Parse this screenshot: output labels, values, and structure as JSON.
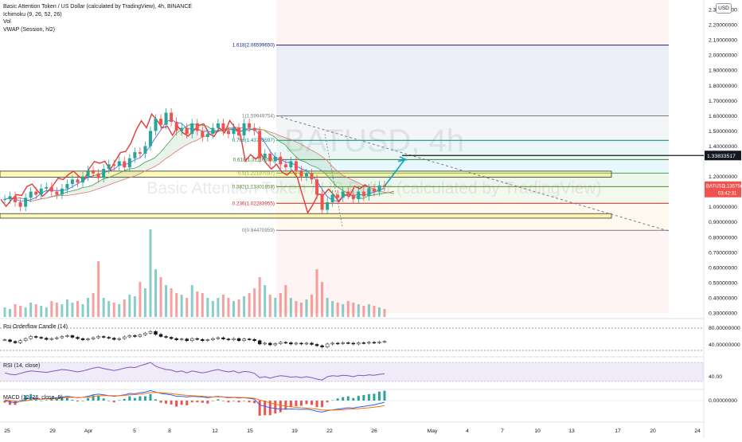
{
  "header": {
    "symbol_line": "Basic Attention Token / US Dollar (calculated by TradingView), 4h, BINANCE",
    "indicators": [
      "Ichimoku (9, 26, 52, 26)",
      "Vol",
      "VWAP (Session, hl2)"
    ],
    "currency_badge": "USD"
  },
  "watermark": {
    "ticker": "BATUSD, 4h",
    "name": "Basic Attention Token / US Dollar (calculated by TradingView)"
  },
  "price_axis": {
    "ticks": [
      "2.30000000",
      "2.20000000",
      "2.10000000",
      "2.00000000",
      "1.90000000",
      "1.80000000",
      "1.70000000",
      "1.60000000",
      "1.50000000",
      "1.40000000",
      "1.20000000",
      "1.10000000",
      "1.00000000",
      "0.90000000",
      "0.80000000",
      "0.70000000",
      "0.60000000",
      "0.50000000",
      "0.40000000",
      "0.30000000"
    ],
    "marker_level": "1.33833517",
    "last_symbol": "BATUSD",
    "last_price": "1.13575610",
    "countdown": "03:42:31"
  },
  "fibonacci": {
    "levels": [
      {
        "label": "1.618(2.06599650)",
        "price": 2.066,
        "color": "#1a237e"
      },
      {
        "label": "1(1.59949754)",
        "price": 1.5995,
        "color": "#787b86"
      },
      {
        "label": "0.786(1.43799597)",
        "price": 1.438,
        "color": "#00897b"
      },
      {
        "label": "0.618(1.31116855)",
        "price": 1.311,
        "color": "#2e7d32"
      },
      {
        "label": "0.5(1.22197037)",
        "price": 1.222,
        "color": "#43a047"
      },
      {
        "label": "0.382(1.13301859)",
        "price": 1.133,
        "color": "#558b2f"
      },
      {
        "label": "0.236(1.02283955)",
        "price": 1.0228,
        "color": "#c62828"
      },
      {
        "label": "0(0.84470959)",
        "price": 0.8447,
        "color": "#787b86"
      }
    ]
  },
  "time_axis": {
    "ticks": [
      "25",
      "29",
      "Apr",
      "5",
      "8",
      "12",
      "15",
      "19",
      "22",
      "26",
      "May",
      "4",
      "7",
      "10",
      "13",
      "17",
      "20",
      "24"
    ]
  },
  "panes": {
    "rsi_candle_label": "Rsi Orderflow Candle (14)",
    "rsi_candle_axis": [
      "80.00000000",
      "40.00000000"
    ],
    "rsi_label": "RSI (14, close)",
    "rsi_axis": [
      "40.00"
    ],
    "macd_label": "MACD (12, 26, close, 9)",
    "macd_axis": [
      "0.00000000"
    ]
  },
  "chart_data": {
    "type": "line",
    "title": "Basic Attention Token / US Dollar (calculated by TradingView), 4h, BINANCE",
    "xlabel": "",
    "ylabel": "",
    "ylim": [
      0.25,
      2.35
    ],
    "log_scale": false,
    "grid": false,
    "series": [
      {
        "name": "",
        "values": [
          1.05,
          1.07,
          1.03,
          1.0,
          1.06,
          1.1,
          1.08,
          1.12,
          1.13,
          1.1,
          1.08,
          1.12,
          1.15,
          1.18,
          1.16,
          1.2,
          1.24,
          1.22,
          1.19,
          1.25,
          1.28,
          1.27,
          1.3,
          1.26,
          1.32,
          1.36,
          1.35,
          1.4,
          1.5,
          1.58,
          1.54,
          1.62,
          1.56,
          1.5,
          1.52,
          1.48,
          1.55,
          1.5,
          1.46,
          1.48,
          1.52,
          1.55,
          1.5,
          1.48,
          1.52,
          1.47,
          1.55,
          1.52,
          1.5,
          1.32,
          1.35,
          1.3,
          1.33,
          1.28,
          1.26,
          1.3,
          1.24,
          1.2,
          1.22,
          1.18,
          1.08,
          0.98,
          1.03,
          1.08,
          1.06,
          1.1,
          1.08,
          1.05,
          1.1,
          1.07,
          1.12,
          1.1,
          1.14,
          1.136
        ]
      }
    ],
    "volume": [
      0.06,
      0.05,
      0.08,
      0.07,
      0.06,
      0.09,
      0.08,
      0.07,
      0.06,
      0.1,
      0.09,
      0.08,
      0.11,
      0.09,
      0.1,
      0.08,
      0.12,
      0.15,
      0.35,
      0.12,
      0.1,
      0.09,
      0.08,
      0.11,
      0.14,
      0.13,
      0.22,
      0.18,
      0.55,
      0.3,
      0.25,
      0.2,
      0.18,
      0.15,
      0.14,
      0.12,
      0.2,
      0.16,
      0.15,
      0.12,
      0.1,
      0.12,
      0.14,
      0.12,
      0.1,
      0.11,
      0.13,
      0.15,
      0.18,
      0.25,
      0.2,
      0.14,
      0.12,
      0.15,
      0.2,
      0.12,
      0.1,
      0.09,
      0.11,
      0.14,
      0.3,
      0.22,
      0.12,
      0.1,
      0.09,
      0.08,
      0.1,
      0.09,
      0.08,
      0.07,
      0.08,
      0.07,
      0.06,
      0.05
    ],
    "rsi_orderflow": [
      52,
      48,
      45,
      50,
      55,
      60,
      58,
      56,
      53,
      55,
      57,
      60,
      62,
      58,
      55,
      52,
      54,
      57,
      60,
      58,
      56,
      53,
      55,
      59,
      62,
      60,
      64,
      68,
      72,
      65,
      60,
      58,
      55,
      52,
      54,
      50,
      55,
      53,
      50,
      52,
      55,
      57,
      54,
      52,
      55,
      50,
      54,
      53,
      50,
      42,
      44,
      40,
      43,
      46,
      45,
      42,
      44,
      42,
      44,
      41,
      38,
      35,
      42,
      44,
      43,
      45,
      44,
      42,
      45,
      44,
      46,
      45,
      47,
      48
    ],
    "rsi": [
      48,
      45,
      44,
      47,
      50,
      52,
      51,
      50,
      49,
      51,
      53,
      55,
      54,
      52,
      50,
      52,
      55,
      58,
      60,
      57,
      55,
      53,
      55,
      58,
      60,
      59,
      63,
      66,
      70,
      62,
      58,
      55,
      54,
      50,
      52,
      48,
      52,
      50,
      48,
      50,
      53,
      55,
      52,
      50,
      52,
      48,
      51,
      50,
      47,
      38,
      40,
      37,
      40,
      42,
      41,
      39,
      40,
      38,
      40,
      38,
      35,
      33,
      40,
      42,
      41,
      43,
      42,
      40,
      43,
      42,
      44,
      43,
      45,
      46
    ],
    "macd": [
      0.0,
      -0.01,
      -0.015,
      -0.005,
      0.01,
      0.02,
      0.015,
      0.01,
      0.012,
      0.015,
      0.02,
      0.025,
      0.03,
      0.025,
      0.02,
      0.022,
      0.03,
      0.04,
      0.045,
      0.04,
      0.035,
      0.03,
      0.035,
      0.04,
      0.05,
      0.048,
      0.055,
      0.06,
      0.07,
      0.06,
      0.05,
      0.045,
      0.04,
      0.03,
      0.03,
      0.025,
      0.03,
      0.028,
      0.025,
      0.02,
      0.025,
      0.03,
      0.025,
      0.02,
      0.022,
      0.018,
      0.02,
      0.015,
      0.01,
      -0.03,
      -0.04,
      -0.05,
      -0.055,
      -0.06,
      -0.06,
      -0.058,
      -0.06,
      -0.062,
      -0.06,
      -0.065,
      -0.075,
      -0.08,
      -0.07,
      -0.065,
      -0.06,
      -0.055,
      -0.05,
      -0.052,
      -0.045,
      -0.04,
      -0.035,
      -0.03,
      -0.02,
      -0.012
    ],
    "macd_signal": [
      0.005,
      0.0,
      -0.005,
      -0.006,
      -0.002,
      0.005,
      0.01,
      0.01,
      0.011,
      0.012,
      0.015,
      0.018,
      0.022,
      0.023,
      0.022,
      0.022,
      0.024,
      0.028,
      0.033,
      0.035,
      0.035,
      0.034,
      0.034,
      0.036,
      0.04,
      0.042,
      0.045,
      0.05,
      0.055,
      0.057,
      0.055,
      0.052,
      0.049,
      0.044,
      0.04,
      0.036,
      0.034,
      0.032,
      0.03,
      0.027,
      0.026,
      0.027,
      0.026,
      0.024,
      0.023,
      0.022,
      0.021,
      0.019,
      0.016,
      0.005,
      -0.006,
      -0.016,
      -0.025,
      -0.033,
      -0.039,
      -0.043,
      -0.047,
      -0.05,
      -0.052,
      -0.055,
      -0.06,
      -0.065,
      -0.066,
      -0.066,
      -0.065,
      -0.063,
      -0.06,
      -0.058,
      -0.056,
      -0.053,
      -0.05,
      -0.046,
      -0.041,
      -0.035
    ]
  }
}
